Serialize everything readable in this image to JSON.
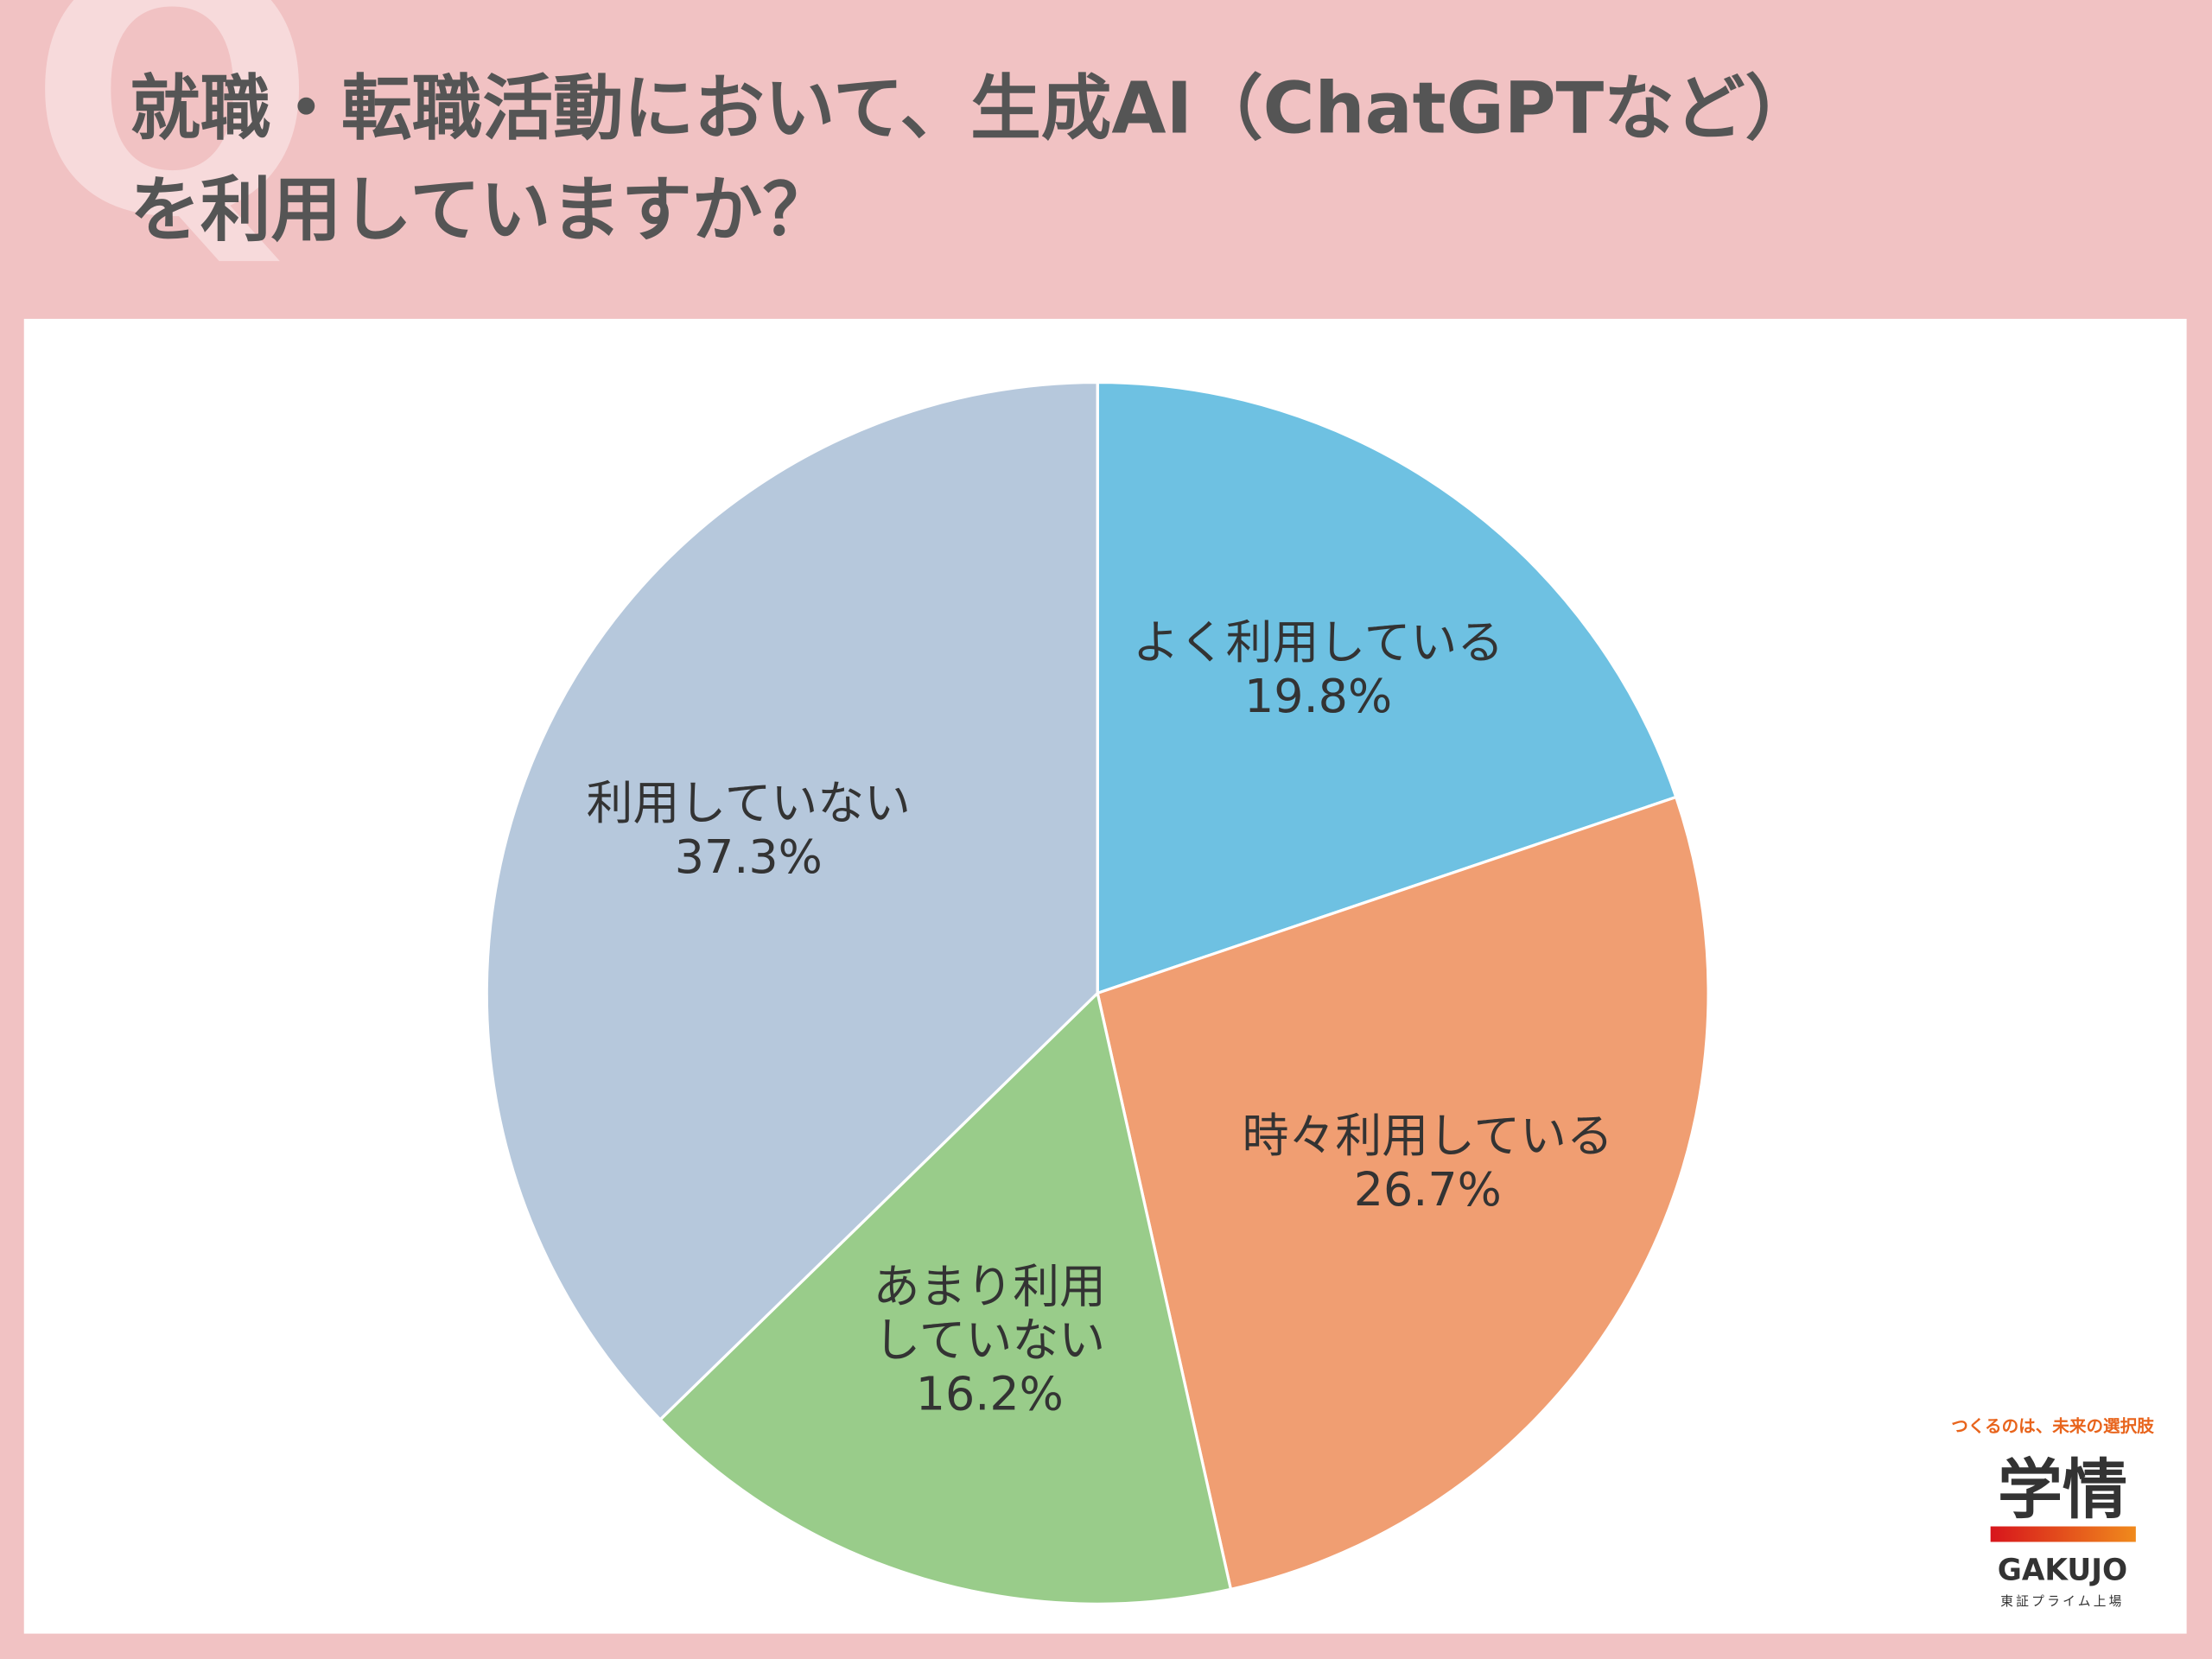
{
  "chart_data": {
    "type": "pie",
    "title": "就職・転職活動において、生成AI（ChatGPTなど）\nを利用していますか？",
    "watermark": "Q",
    "categories": [
      "よく利用している",
      "時々利用している",
      "あまり利用\nしていない",
      "利用していない"
    ],
    "values": [
      19.8,
      26.7,
      16.2,
      37.3
    ],
    "value_labels": [
      "19.8%",
      "26.7%",
      "16.2%",
      "37.3%"
    ],
    "colors": [
      "#6ec1e2",
      "#f09e72",
      "#99cc8a",
      "#b6c8dc"
    ]
  },
  "logo": {
    "tagline": "つくるのは、未来の選択肢",
    "name": "学情",
    "roman": "GAKUJO",
    "listing": "東証プライム上場"
  }
}
